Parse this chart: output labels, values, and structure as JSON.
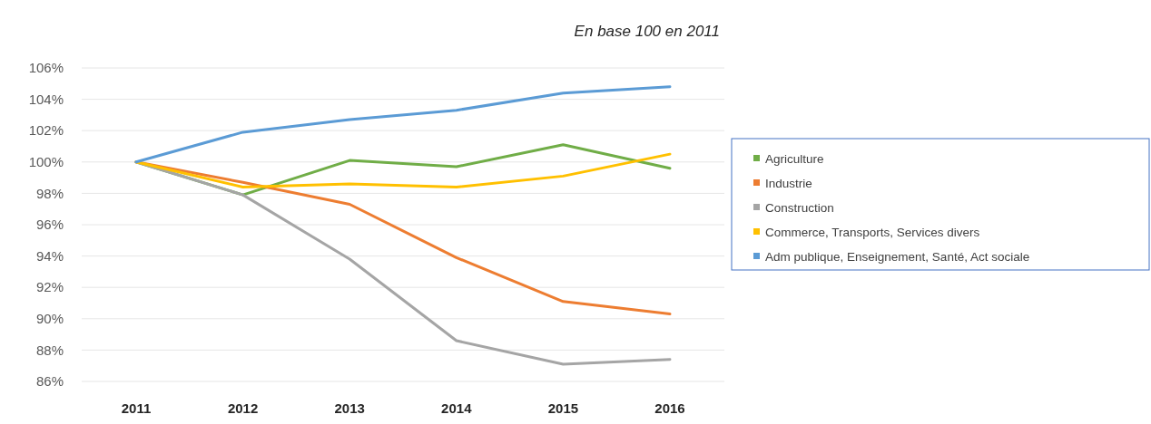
{
  "chart_data": {
    "type": "line",
    "title": "En base 100 en 2011",
    "categories": [
      "2011",
      "2012",
      "2013",
      "2014",
      "2015",
      "2016"
    ],
    "series": [
      {
        "name": "Agriculture",
        "color": "#70ad47",
        "values": [
          100,
          97.9,
          100.1,
          99.7,
          101.1,
          99.6
        ]
      },
      {
        "name": " Industrie",
        "color": "#ed7d31",
        "values": [
          100,
          98.7,
          97.3,
          93.9,
          91.1,
          90.3
        ]
      },
      {
        "name": "Construction",
        "color": "#a5a5a5",
        "values": [
          100,
          97.9,
          93.8,
          88.6,
          87.1,
          87.4
        ]
      },
      {
        "name": "Commerce, Transports, Services divers",
        "color": "#ffc000",
        "values": [
          100,
          98.4,
          98.6,
          98.4,
          99.1,
          100.5
        ]
      },
      {
        "name": "Adm publique, Enseignement, Santé, Act sociale",
        "color": "#5b9bd5",
        "values": [
          100,
          101.9,
          102.7,
          103.3,
          104.4,
          104.8
        ]
      }
    ],
    "ylim": [
      86,
      106
    ],
    "yticks": [
      {
        "value": 86,
        "label": "86%"
      },
      {
        "value": 88,
        "label": "88%"
      },
      {
        "value": 90,
        "label": "90%"
      },
      {
        "value": 92,
        "label": "92%"
      },
      {
        "value": 94,
        "label": "94%"
      },
      {
        "value": 96,
        "label": "96%"
      },
      {
        "value": 98,
        "label": "98%"
      },
      {
        "value": 100,
        "label": "100%"
      },
      {
        "value": 102,
        "label": "102%"
      },
      {
        "value": 104,
        "label": "104%"
      },
      {
        "value": 106,
        "label": "106%"
      }
    ],
    "grid": "y",
    "legend": "right",
    "marker": "none",
    "line_style": "solid"
  }
}
